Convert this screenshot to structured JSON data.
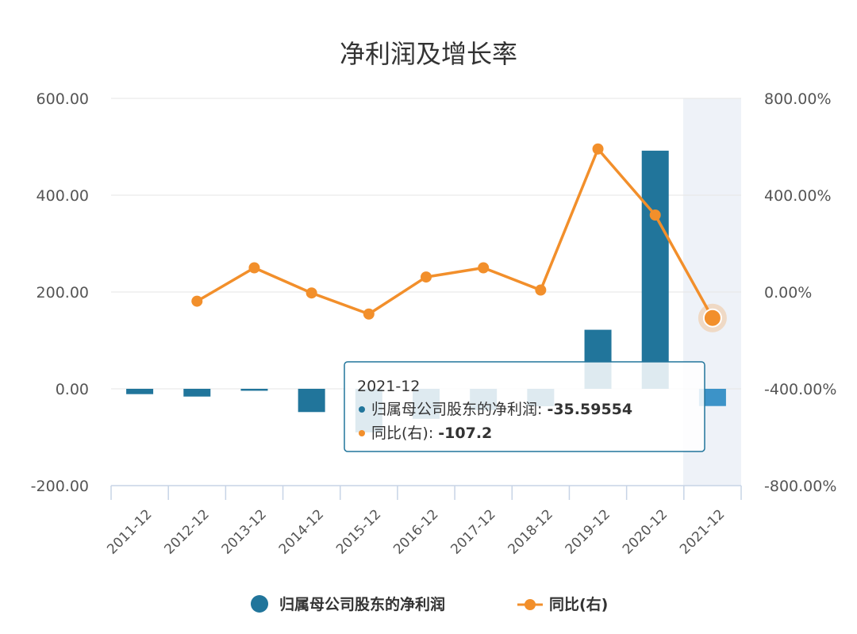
{
  "chart_data": {
    "type": "bar",
    "title": "净利润及增长率",
    "categories": [
      "2011-12",
      "2012-12",
      "2013-12",
      "2014-12",
      "2015-12",
      "2016-12",
      "2017-12",
      "2018-12",
      "2019-12",
      "2020-12",
      "2021-12"
    ],
    "series": [
      {
        "name": "归属母公司股东的净利润",
        "type": "bar",
        "axis": "left",
        "color": "#21759b",
        "values": [
          -11,
          -16,
          -4,
          -48,
          -90,
          -62,
          -44,
          -36,
          122,
          492,
          -35.59554
        ]
      },
      {
        "name": "同比(右)",
        "type": "line",
        "axis": "right",
        "color": "#f28f2b",
        "values": [
          null,
          -38,
          100,
          -4,
          -91,
          62,
          100,
          8,
          591,
          318,
          -107.2
        ]
      }
    ],
    "left_axis": {
      "ylim": [
        -200,
        600
      ],
      "ticks": [
        "600.00",
        "400.00",
        "200.00",
        "0.00",
        "-200.00"
      ]
    },
    "right_axis": {
      "ylim": [
        -800,
        800
      ],
      "ticks": [
        "800.00%",
        "400.00%",
        "0.00%",
        "-400.00%",
        "-800.00%"
      ]
    },
    "grid": true,
    "legend_position": "bottom-center",
    "highlight_category": "2021-12",
    "tooltip": {
      "category": "2021-12",
      "rows": [
        {
          "label": "归属母公司股东的净利润:",
          "value": "-35.59554",
          "color": "#21759b"
        },
        {
          "label": "同比(右):",
          "value": "-107.2",
          "color": "#f28f2b"
        }
      ]
    }
  }
}
